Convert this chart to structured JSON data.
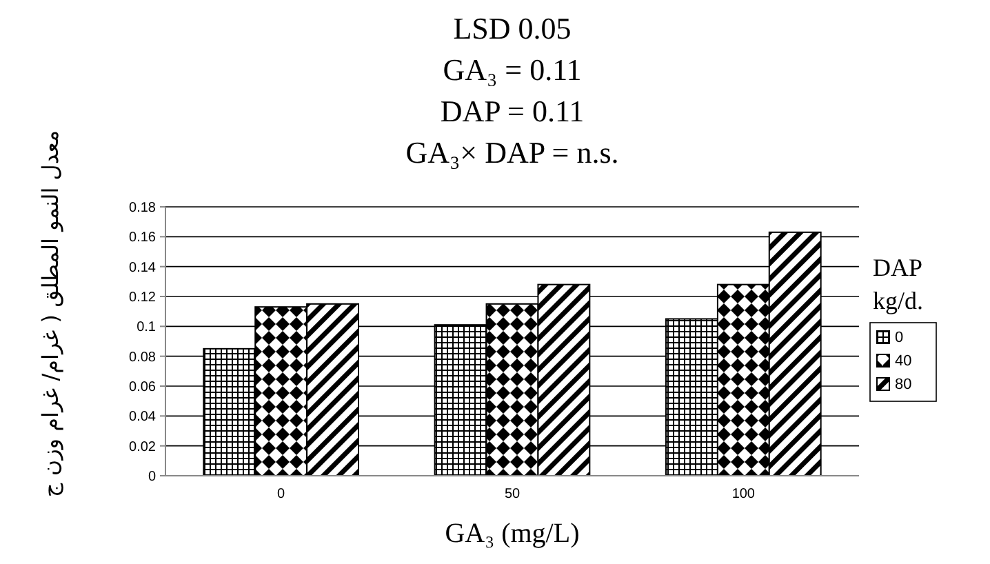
{
  "chart_data": {
    "type": "bar",
    "title": "LSD 0.05",
    "annotations": [
      "GA₃ = 0.11",
      "DAP = 0.11",
      "GA₃× DAP = n.s."
    ],
    "xlabel": "GA₃ (mg/L)",
    "ylabel": "معدل النمو المطلق ( غرام/ غرام وزن ج",
    "legend_title": "DAP kg/d.",
    "categories": [
      "0",
      "50",
      "100"
    ],
    "series": [
      {
        "name": "0",
        "color": "#000000",
        "values": [
          0.085,
          0.101,
          0.105
        ]
      },
      {
        "name": "40",
        "color": "#000000",
        "values": [
          0.113,
          0.115,
          0.128
        ]
      },
      {
        "name": "80",
        "color": "#000000",
        "values": [
          0.115,
          0.128,
          0.163
        ]
      }
    ],
    "ylim": [
      0,
      0.18
    ],
    "yticks": [
      0,
      0.02,
      0.04,
      0.06,
      0.08,
      0.1,
      0.12,
      0.14,
      0.16,
      0.18
    ],
    "grid": "y",
    "legend": "right"
  }
}
